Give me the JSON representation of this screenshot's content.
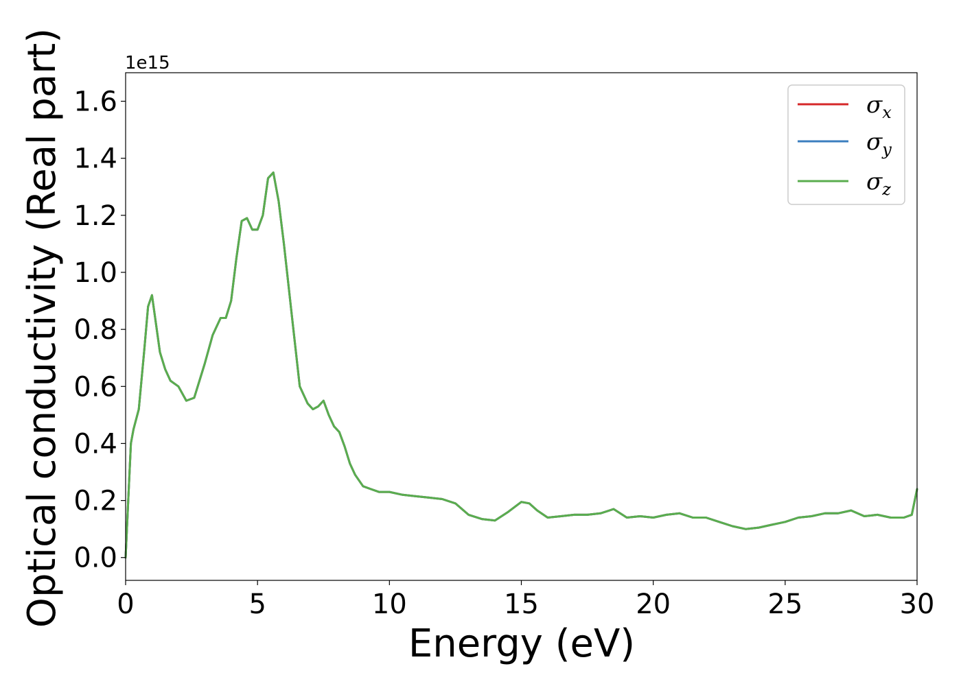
{
  "chart_data": {
    "type": "line",
    "xlabel": "Energy (eV)",
    "ylabel": "Optical conductivity (Real part)",
    "y_offset_label": "1e15",
    "xlim": [
      0,
      30
    ],
    "ylim": [
      -0.08,
      1.7
    ],
    "grid": false,
    "legend_position": "top-right",
    "x_ticks": [
      0,
      5,
      10,
      15,
      20,
      25,
      30
    ],
    "x_tick_labels": [
      "0",
      "5",
      "10",
      "15",
      "20",
      "25",
      "30"
    ],
    "y_ticks": [
      0.0,
      0.2,
      0.4,
      0.6,
      0.8,
      1.0,
      1.2,
      1.4,
      1.6
    ],
    "y_tick_labels": [
      "0.0",
      "0.2",
      "0.4",
      "0.6",
      "0.8",
      "1.0",
      "1.2",
      "1.4",
      "1.6"
    ],
    "x": [
      0,
      0.1,
      0.2,
      0.3,
      0.5,
      0.7,
      0.85,
      1.0,
      1.15,
      1.3,
      1.5,
      1.7,
      2.0,
      2.3,
      2.6,
      3.0,
      3.3,
      3.6,
      3.8,
      4.0,
      4.2,
      4.4,
      4.6,
      4.8,
      5.0,
      5.2,
      5.4,
      5.6,
      5.8,
      6.0,
      6.3,
      6.6,
      6.9,
      7.1,
      7.3,
      7.5,
      7.7,
      7.9,
      8.1,
      8.3,
      8.5,
      8.7,
      9.0,
      9.3,
      9.6,
      10.0,
      10.5,
      11.0,
      11.5,
      12.0,
      12.5,
      13.0,
      13.5,
      14.0,
      14.5,
      15.0,
      15.3,
      15.6,
      16.0,
      16.5,
      17.0,
      17.5,
      18.0,
      18.5,
      19.0,
      19.5,
      20.0,
      20.5,
      21.0,
      21.5,
      22.0,
      22.5,
      23.0,
      23.5,
      24.0,
      24.5,
      25.0,
      25.5,
      26.0,
      26.5,
      27.0,
      27.5,
      28.0,
      28.5,
      29.0,
      29.5,
      29.8,
      30.0
    ],
    "series": [
      {
        "name": "σx",
        "color": "#d62728",
        "values": [
          0.0,
          0.2,
          0.4,
          0.45,
          0.52,
          0.72,
          0.88,
          0.92,
          0.82,
          0.72,
          0.66,
          0.62,
          0.6,
          0.55,
          0.56,
          0.68,
          0.78,
          0.84,
          0.84,
          0.9,
          1.05,
          1.18,
          1.19,
          1.15,
          1.15,
          1.2,
          1.33,
          1.35,
          1.25,
          1.1,
          0.85,
          0.6,
          0.54,
          0.52,
          0.53,
          0.55,
          0.5,
          0.46,
          0.44,
          0.39,
          0.33,
          0.29,
          0.25,
          0.24,
          0.23,
          0.23,
          0.22,
          0.215,
          0.21,
          0.205,
          0.19,
          0.15,
          0.135,
          0.13,
          0.16,
          0.195,
          0.19,
          0.165,
          0.14,
          0.145,
          0.15,
          0.15,
          0.155,
          0.17,
          0.14,
          0.145,
          0.14,
          0.15,
          0.155,
          0.14,
          0.14,
          0.125,
          0.11,
          0.1,
          0.105,
          0.115,
          0.125,
          0.14,
          0.145,
          0.155,
          0.155,
          0.165,
          0.145,
          0.15,
          0.14,
          0.14,
          0.15,
          0.24
        ]
      },
      {
        "name": "σy",
        "color": "#3b7ebf",
        "values": [
          0.0,
          0.2,
          0.4,
          0.45,
          0.52,
          0.72,
          0.88,
          0.92,
          0.82,
          0.72,
          0.66,
          0.62,
          0.6,
          0.55,
          0.56,
          0.68,
          0.78,
          0.84,
          0.84,
          0.9,
          1.05,
          1.18,
          1.19,
          1.15,
          1.15,
          1.2,
          1.33,
          1.35,
          1.25,
          1.1,
          0.85,
          0.6,
          0.54,
          0.52,
          0.53,
          0.55,
          0.5,
          0.46,
          0.44,
          0.39,
          0.33,
          0.29,
          0.25,
          0.24,
          0.23,
          0.23,
          0.22,
          0.215,
          0.21,
          0.205,
          0.19,
          0.15,
          0.135,
          0.13,
          0.16,
          0.195,
          0.19,
          0.165,
          0.14,
          0.145,
          0.15,
          0.15,
          0.155,
          0.17,
          0.14,
          0.145,
          0.14,
          0.15,
          0.155,
          0.14,
          0.14,
          0.125,
          0.11,
          0.1,
          0.105,
          0.115,
          0.125,
          0.14,
          0.145,
          0.155,
          0.155,
          0.165,
          0.145,
          0.15,
          0.14,
          0.14,
          0.15,
          0.24
        ]
      },
      {
        "name": "σz",
        "color": "#5aad4e",
        "values": [
          0.0,
          0.2,
          0.4,
          0.45,
          0.52,
          0.72,
          0.88,
          0.92,
          0.82,
          0.72,
          0.66,
          0.62,
          0.6,
          0.55,
          0.56,
          0.68,
          0.78,
          0.84,
          0.84,
          0.9,
          1.05,
          1.18,
          1.19,
          1.15,
          1.15,
          1.2,
          1.33,
          1.35,
          1.25,
          1.1,
          0.85,
          0.6,
          0.54,
          0.52,
          0.53,
          0.55,
          0.5,
          0.46,
          0.44,
          0.39,
          0.33,
          0.29,
          0.25,
          0.24,
          0.23,
          0.23,
          0.22,
          0.215,
          0.21,
          0.205,
          0.19,
          0.15,
          0.135,
          0.13,
          0.16,
          0.195,
          0.19,
          0.165,
          0.14,
          0.145,
          0.15,
          0.15,
          0.155,
          0.17,
          0.14,
          0.145,
          0.14,
          0.15,
          0.155,
          0.14,
          0.14,
          0.125,
          0.11,
          0.1,
          0.105,
          0.115,
          0.125,
          0.14,
          0.145,
          0.155,
          0.155,
          0.165,
          0.145,
          0.15,
          0.14,
          0.14,
          0.15,
          0.24
        ]
      }
    ],
    "legend": [
      {
        "symbol": "σ",
        "sub": "x"
      },
      {
        "symbol": "σ",
        "sub": "y"
      },
      {
        "symbol": "σ",
        "sub": "z"
      }
    ]
  }
}
